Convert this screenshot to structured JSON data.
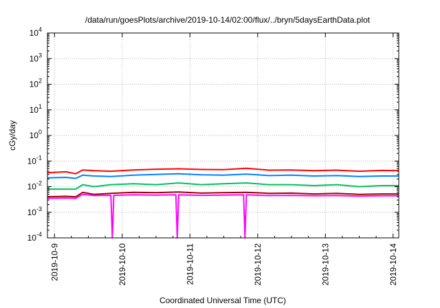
{
  "chart_data": {
    "type": "line",
    "title": "/data/run/goesPlots/archive/2019-10-14/02:00/flux/../bryn/5daysEarthData.plot",
    "xlabel": "Coordinated Universal Time (UTC)",
    "ylabel": "cGy/day",
    "x_range": [
      "2019-10-08 21:30",
      "2019-10-14 02:00"
    ],
    "x_ticks": [
      "2019-10-9",
      "2019-10-10",
      "2019-10-11",
      "2019-10-12",
      "2019-10-13",
      "2019-10-14"
    ],
    "y_scale": "log",
    "ylim": [
      0.0001,
      10000
    ],
    "y_ticks": [
      {
        "base": "10",
        "exp": "-4"
      },
      {
        "base": "10",
        "exp": "-3"
      },
      {
        "base": "10",
        "exp": "-2"
      },
      {
        "base": "10",
        "exp": "-1"
      },
      {
        "base": "10",
        "exp": "0"
      },
      {
        "base": "10",
        "exp": "1"
      },
      {
        "base": "10",
        "exp": "2"
      },
      {
        "base": "10",
        "exp": "3"
      },
      {
        "base": "10",
        "exp": "4"
      }
    ],
    "grid": true,
    "legend": "none",
    "series": [
      {
        "color": "#ff0000",
        "values": [
          [
            "2019-10-08 21:30",
            0.035
          ],
          [
            "2019-10-09 04:00",
            0.038
          ],
          [
            "2019-10-09 07:30",
            0.032
          ],
          [
            "2019-10-09 10:00",
            0.045
          ],
          [
            "2019-10-09 14:00",
            0.042
          ],
          [
            "2019-10-09 20:00",
            0.04
          ],
          [
            "2019-10-10 04:00",
            0.045
          ],
          [
            "2019-10-10 12:00",
            0.048
          ],
          [
            "2019-10-10 20:00",
            0.05
          ],
          [
            "2019-10-11 04:00",
            0.047
          ],
          [
            "2019-10-11 12:00",
            0.046
          ],
          [
            "2019-10-11 20:00",
            0.052
          ],
          [
            "2019-10-12 04:00",
            0.044
          ],
          [
            "2019-10-12 12:00",
            0.045
          ],
          [
            "2019-10-12 20:00",
            0.042
          ],
          [
            "2019-10-13 04:00",
            0.044
          ],
          [
            "2019-10-13 12:00",
            0.04
          ],
          [
            "2019-10-13 20:00",
            0.043
          ],
          [
            "2019-10-14 02:00",
            0.042
          ]
        ]
      },
      {
        "color": "#0080ff",
        "values": [
          [
            "2019-10-08 21:30",
            0.022
          ],
          [
            "2019-10-09 04:00",
            0.023
          ],
          [
            "2019-10-09 07:30",
            0.021
          ],
          [
            "2019-10-09 10:00",
            0.028
          ],
          [
            "2019-10-09 14:00",
            0.026
          ],
          [
            "2019-10-09 20:00",
            0.025
          ],
          [
            "2019-10-10 04:00",
            0.028
          ],
          [
            "2019-10-10 12:00",
            0.03
          ],
          [
            "2019-10-10 20:00",
            0.032
          ],
          [
            "2019-10-11 04:00",
            0.029
          ],
          [
            "2019-10-11 12:00",
            0.028
          ],
          [
            "2019-10-11 20:00",
            0.031
          ],
          [
            "2019-10-12 04:00",
            0.027
          ],
          [
            "2019-10-12 12:00",
            0.028
          ],
          [
            "2019-10-12 20:00",
            0.026
          ],
          [
            "2019-10-13 04:00",
            0.027
          ],
          [
            "2019-10-13 12:00",
            0.025
          ],
          [
            "2019-10-13 20:00",
            0.026
          ],
          [
            "2019-10-14 02:00",
            0.026
          ]
        ]
      },
      {
        "color": "#00c060",
        "values": [
          [
            "2019-10-08 21:30",
            0.008
          ],
          [
            "2019-10-09 04:00",
            0.008
          ],
          [
            "2019-10-09 07:30",
            0.008
          ],
          [
            "2019-10-09 10:00",
            0.012
          ],
          [
            "2019-10-09 14:00",
            0.01
          ],
          [
            "2019-10-09 20:00",
            0.012
          ],
          [
            "2019-10-10 04:00",
            0.013
          ],
          [
            "2019-10-10 12:00",
            0.012
          ],
          [
            "2019-10-10 20:00",
            0.014
          ],
          [
            "2019-10-11 04:00",
            0.012
          ],
          [
            "2019-10-11 12:00",
            0.013
          ],
          [
            "2019-10-11 20:00",
            0.014
          ],
          [
            "2019-10-12 04:00",
            0.012
          ],
          [
            "2019-10-12 12:00",
            0.012
          ],
          [
            "2019-10-12 20:00",
            0.011
          ],
          [
            "2019-10-13 04:00",
            0.012
          ],
          [
            "2019-10-13 12:00",
            0.01
          ],
          [
            "2019-10-13 20:00",
            0.011
          ],
          [
            "2019-10-14 02:00",
            0.011
          ]
        ]
      },
      {
        "color": "#a00000",
        "values": [
          [
            "2019-10-08 21:30",
            0.004
          ],
          [
            "2019-10-09 04:00",
            0.0042
          ],
          [
            "2019-10-09 07:30",
            0.004
          ],
          [
            "2019-10-09 10:00",
            0.006
          ],
          [
            "2019-10-09 14:00",
            0.005
          ],
          [
            "2019-10-09 20:00",
            0.0055
          ],
          [
            "2019-10-10 04:00",
            0.006
          ],
          [
            "2019-10-10 12:00",
            0.0058
          ],
          [
            "2019-10-10 20:00",
            0.0062
          ],
          [
            "2019-10-11 04:00",
            0.0056
          ],
          [
            "2019-10-11 12:00",
            0.0058
          ],
          [
            "2019-10-11 20:00",
            0.006
          ],
          [
            "2019-10-12 04:00",
            0.0055
          ],
          [
            "2019-10-12 12:00",
            0.0056
          ],
          [
            "2019-10-12 20:00",
            0.0052
          ],
          [
            "2019-10-13 04:00",
            0.0055
          ],
          [
            "2019-10-13 12:00",
            0.005
          ],
          [
            "2019-10-13 20:00",
            0.0052
          ],
          [
            "2019-10-14 02:00",
            0.0052
          ]
        ]
      },
      {
        "color": "#ff00ff",
        "values": [
          [
            "2019-10-08 21:30",
            0.0035
          ],
          [
            "2019-10-09 04:00",
            0.0036
          ],
          [
            "2019-10-09 07:30",
            0.0035
          ],
          [
            "2019-10-09 10:00",
            0.005
          ],
          [
            "2019-10-09 14:00",
            0.0045
          ],
          [
            "2019-10-09 20:00",
            0.0046
          ],
          [
            "2019-10-09 20:30",
            0.0001
          ],
          [
            "2019-10-09 21:00",
            0.0046
          ],
          [
            "2019-10-10 04:00",
            0.0048
          ],
          [
            "2019-10-10 12:00",
            0.0047
          ],
          [
            "2019-10-10 19:00",
            0.0048
          ],
          [
            "2019-10-10 19:30",
            0.0001
          ],
          [
            "2019-10-10 20:00",
            0.0048
          ],
          [
            "2019-10-11 04:00",
            0.0046
          ],
          [
            "2019-10-11 12:00",
            0.0047
          ],
          [
            "2019-10-11 19:00",
            0.0048
          ],
          [
            "2019-10-11 19:30",
            0.0001
          ],
          [
            "2019-10-11 20:00",
            0.0048
          ],
          [
            "2019-10-12 04:00",
            0.0045
          ],
          [
            "2019-10-12 12:00",
            0.0046
          ],
          [
            "2019-10-12 20:00",
            0.0044
          ],
          [
            "2019-10-13 04:00",
            0.0045
          ],
          [
            "2019-10-13 12:00",
            0.0043
          ],
          [
            "2019-10-13 20:00",
            0.0044
          ],
          [
            "2019-10-14 02:00",
            0.0044
          ]
        ]
      }
    ]
  }
}
